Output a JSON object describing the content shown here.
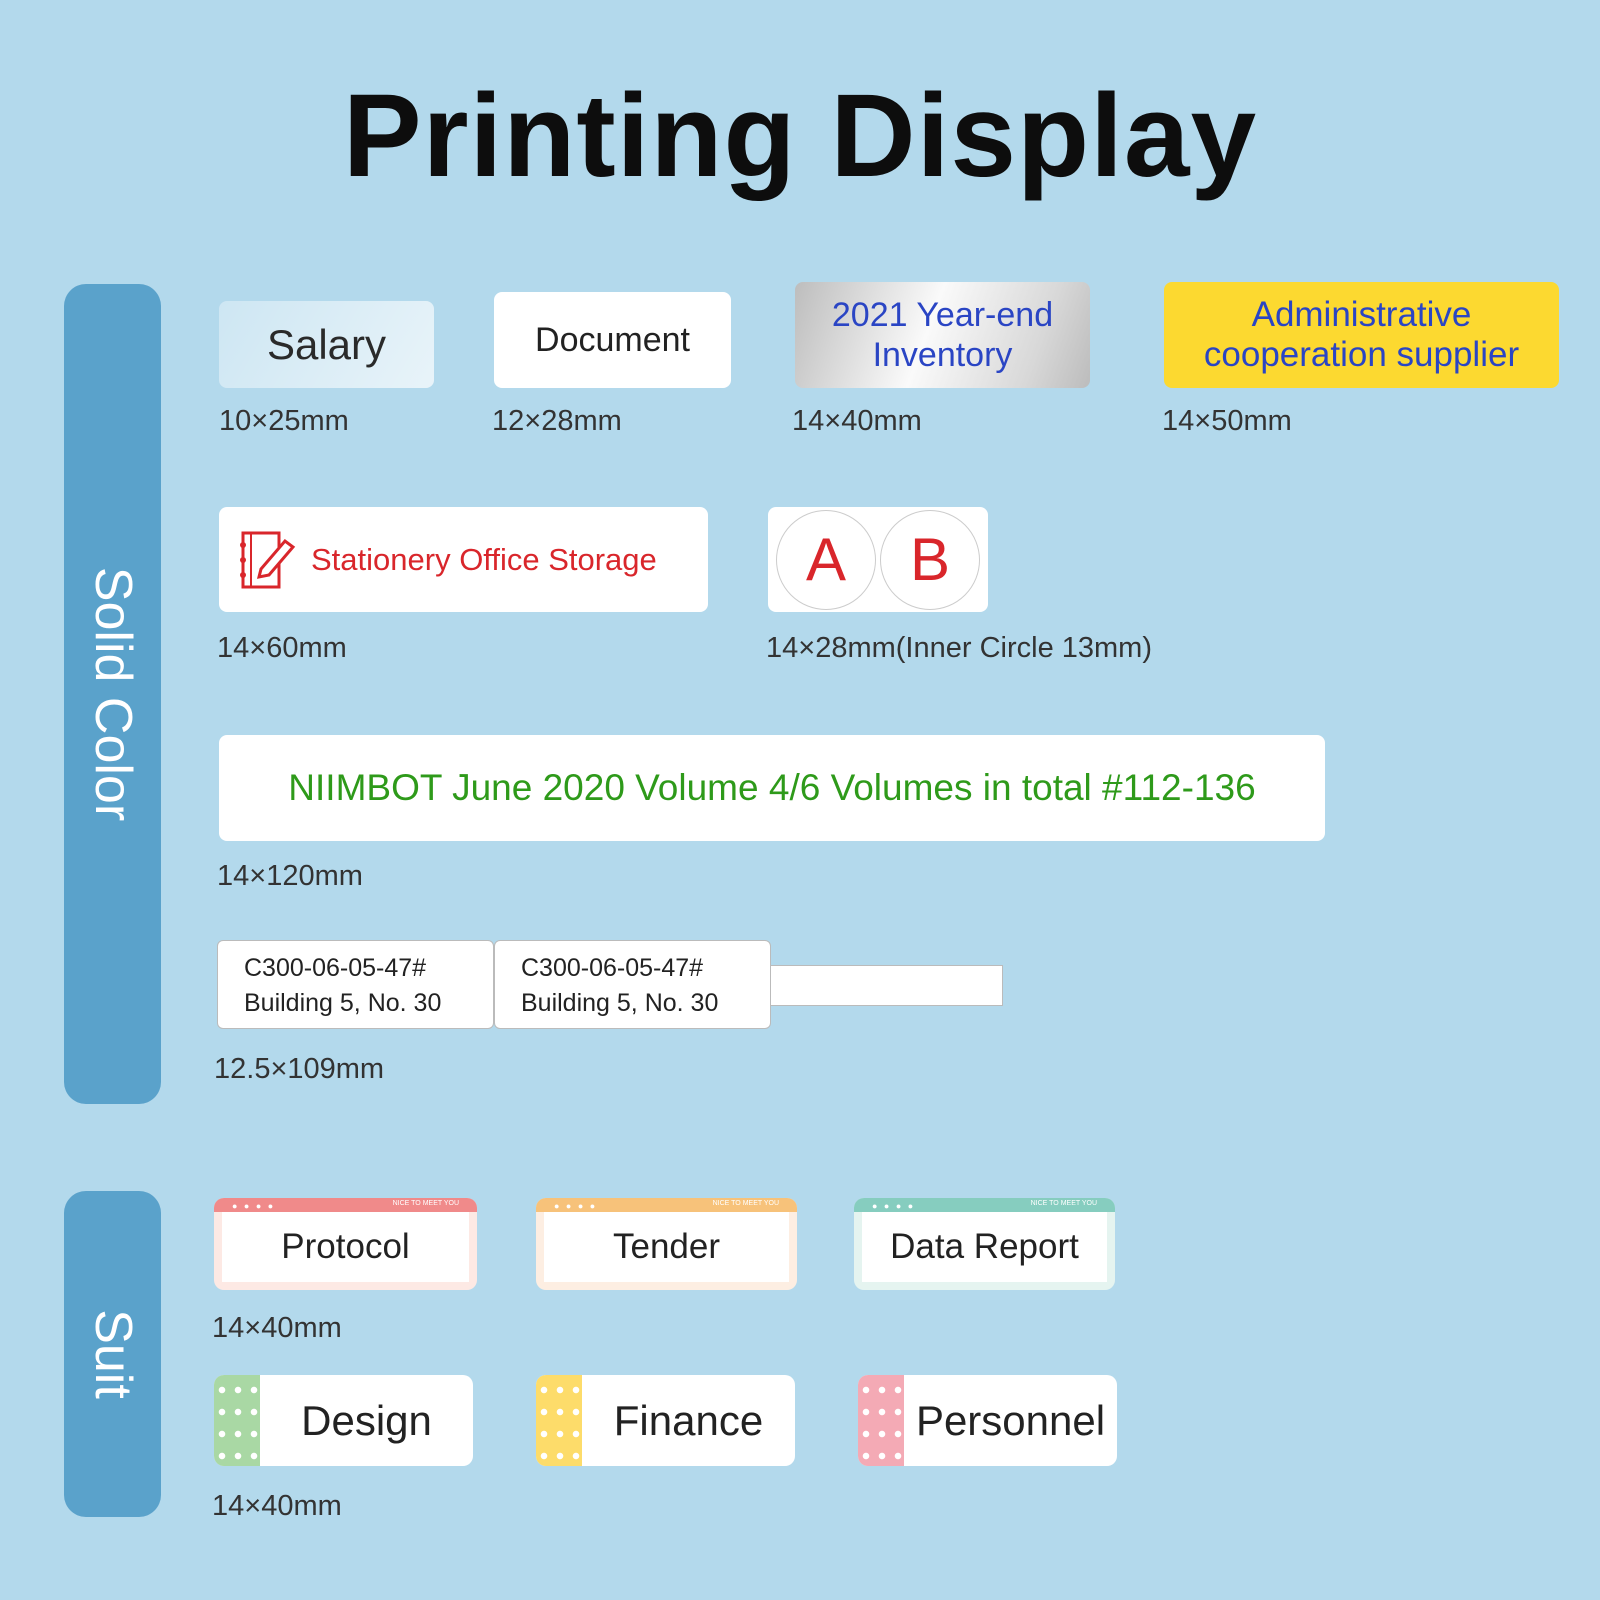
{
  "title": "Printing Display",
  "sections": {
    "solid": "Solid Color",
    "suit": "Suit"
  },
  "row1": [
    {
      "text": "Salary",
      "size": "10×25mm"
    },
    {
      "text": "Document",
      "size": "12×28mm"
    },
    {
      "text_line1": "2021 Year-end",
      "text_line2": "Inventory",
      "size": "14×40mm"
    },
    {
      "text_line1": "Administrative",
      "text_line2": "cooperation supplier",
      "size": "14×50mm"
    }
  ],
  "row2": [
    {
      "text": "Stationery Office Storage",
      "icon": "notebook-pencil-icon",
      "size": "14×60mm"
    },
    {
      "letters": [
        "A",
        "B"
      ],
      "size": "14×28mm(Inner Circle  13mm)"
    }
  ],
  "row3": {
    "text": "NIIMBOT June 2020 Volume 4/6 Volumes in total #112-136",
    "size": "14×120mm"
  },
  "row4": {
    "line1": "C300-06-05-47#",
    "line2": "Building 5, No. 30",
    "size": "12.5×109mm"
  },
  "suit_row1": {
    "items": [
      "Protocol",
      "Tender",
      "Data Report"
    ],
    "tag": "NICE TO MEET YOU",
    "dots": "● ● ● ●",
    "size": "14×40mm"
  },
  "suit_row2": {
    "items": [
      "Design",
      "Finance",
      "Personnel"
    ],
    "size": "14×40mm"
  },
  "colors": {
    "background": "#b3d9ec",
    "sidebar": "#5aa2cb",
    "yellow": "#fcd930",
    "blue_text": "#2a45c4",
    "red_text": "#d9262b",
    "green_text": "#2e9a1a",
    "pink": "#f08a8a",
    "orange": "#f7c27a",
    "teal": "#86cdbf",
    "dot_green": "#a9d8a4",
    "dot_yellow": "#fddc6a",
    "dot_pink": "#f4aab5"
  }
}
